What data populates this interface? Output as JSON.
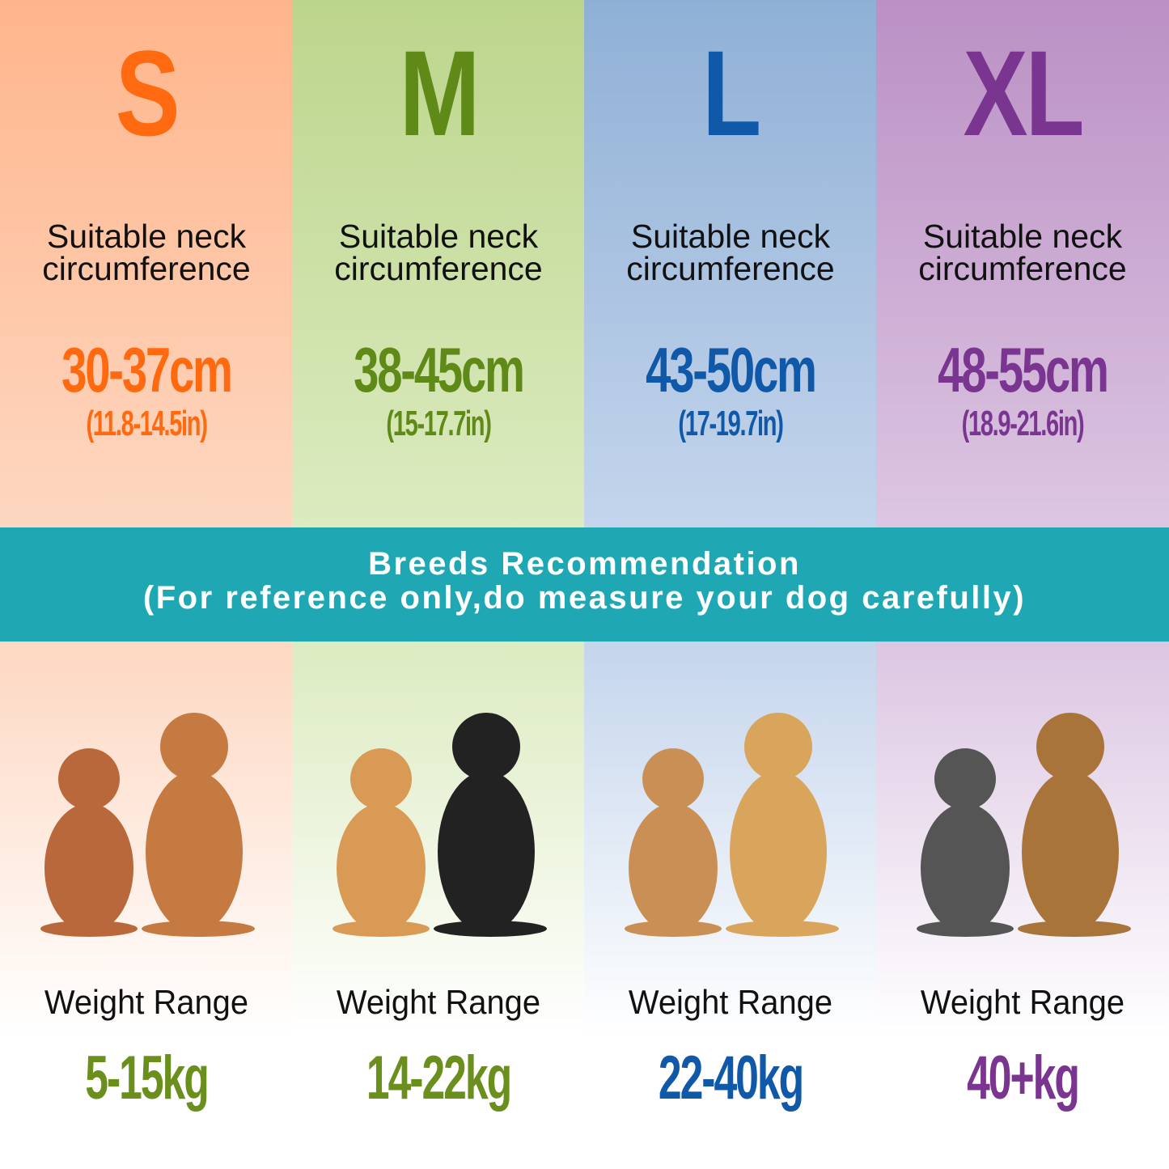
{
  "label_neck": "Suitable neck circumference",
  "label_weight": "Weight Range",
  "sizes": [
    {
      "size": "S",
      "neck_cm": "30-37cm",
      "neck_in": "(11.8-14.5in)",
      "weight": "5-15kg",
      "color": "#ff6a10",
      "weight_color": "#6a8f1c",
      "bg": "#ffb58b",
      "bg_bottom": "#fdd7c1"
    },
    {
      "size": "M",
      "neck_cm": "38-45cm",
      "neck_in": "(15-17.7in)",
      "weight": "14-22kg",
      "color": "#5f8a18",
      "weight_color": "#6a8f1c",
      "bg": "#bcd58c",
      "bg_bottom": "#dcebc0"
    },
    {
      "size": "L",
      "neck_cm": "43-50cm",
      "neck_in": "(17-19.7in)",
      "weight": "22-40kg",
      "color": "#1058a8",
      "weight_color": "#1058a8",
      "bg": "#8fb0d6",
      "bg_bottom": "#c4d5ec"
    },
    {
      "size": "XL",
      "neck_cm": "48-55cm",
      "neck_in": "(18.9-21.6in)",
      "weight": "40+kg",
      "color": "#7a3590",
      "weight_color": "#7a3590",
      "bg": "#bb90c4",
      "bg_bottom": "#dcc6e2"
    }
  ],
  "banner": {
    "title": "Breeds Recommendation",
    "subtitle": "(For reference only,do measure your dog carefully)",
    "color": "#1fa8b4"
  }
}
